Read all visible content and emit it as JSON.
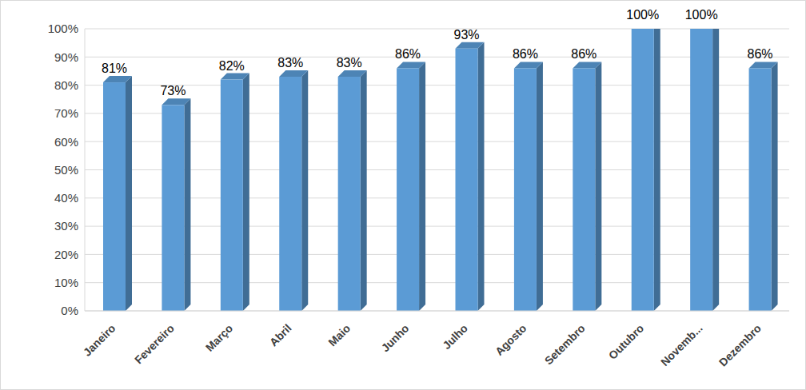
{
  "chart_data": {
    "type": "bar",
    "categories": [
      "Janeiro",
      "Fevereiro",
      "Março",
      "Abril",
      "Maio",
      "Junho",
      "Julho",
      "Agosto",
      "Setembro",
      "Outubro",
      "Novemb...",
      "Dezembro"
    ],
    "values": [
      81,
      73,
      82,
      83,
      83,
      86,
      93,
      86,
      86,
      100,
      100,
      86
    ],
    "value_labels": [
      "81%",
      "73%",
      "82%",
      "83%",
      "83%",
      "86%",
      "93%",
      "86%",
      "86%",
      "100%",
      "100%",
      "86%"
    ],
    "color": "#5b9bd5",
    "ylim": [
      0,
      100
    ],
    "yticks": [
      {
        "value": 0,
        "label": "0%"
      },
      {
        "value": 10,
        "label": "10%"
      },
      {
        "value": 20,
        "label": "20%"
      },
      {
        "value": 30,
        "label": "30%"
      },
      {
        "value": 40,
        "label": "40%"
      },
      {
        "value": 50,
        "label": "50%"
      },
      {
        "value": 60,
        "label": "60%"
      },
      {
        "value": 70,
        "label": "70%"
      },
      {
        "value": 80,
        "label": "80%"
      },
      {
        "value": 90,
        "label": "90%"
      },
      {
        "value": 100,
        "label": "100%"
      }
    ],
    "grid": true,
    "data_labels": true
  }
}
